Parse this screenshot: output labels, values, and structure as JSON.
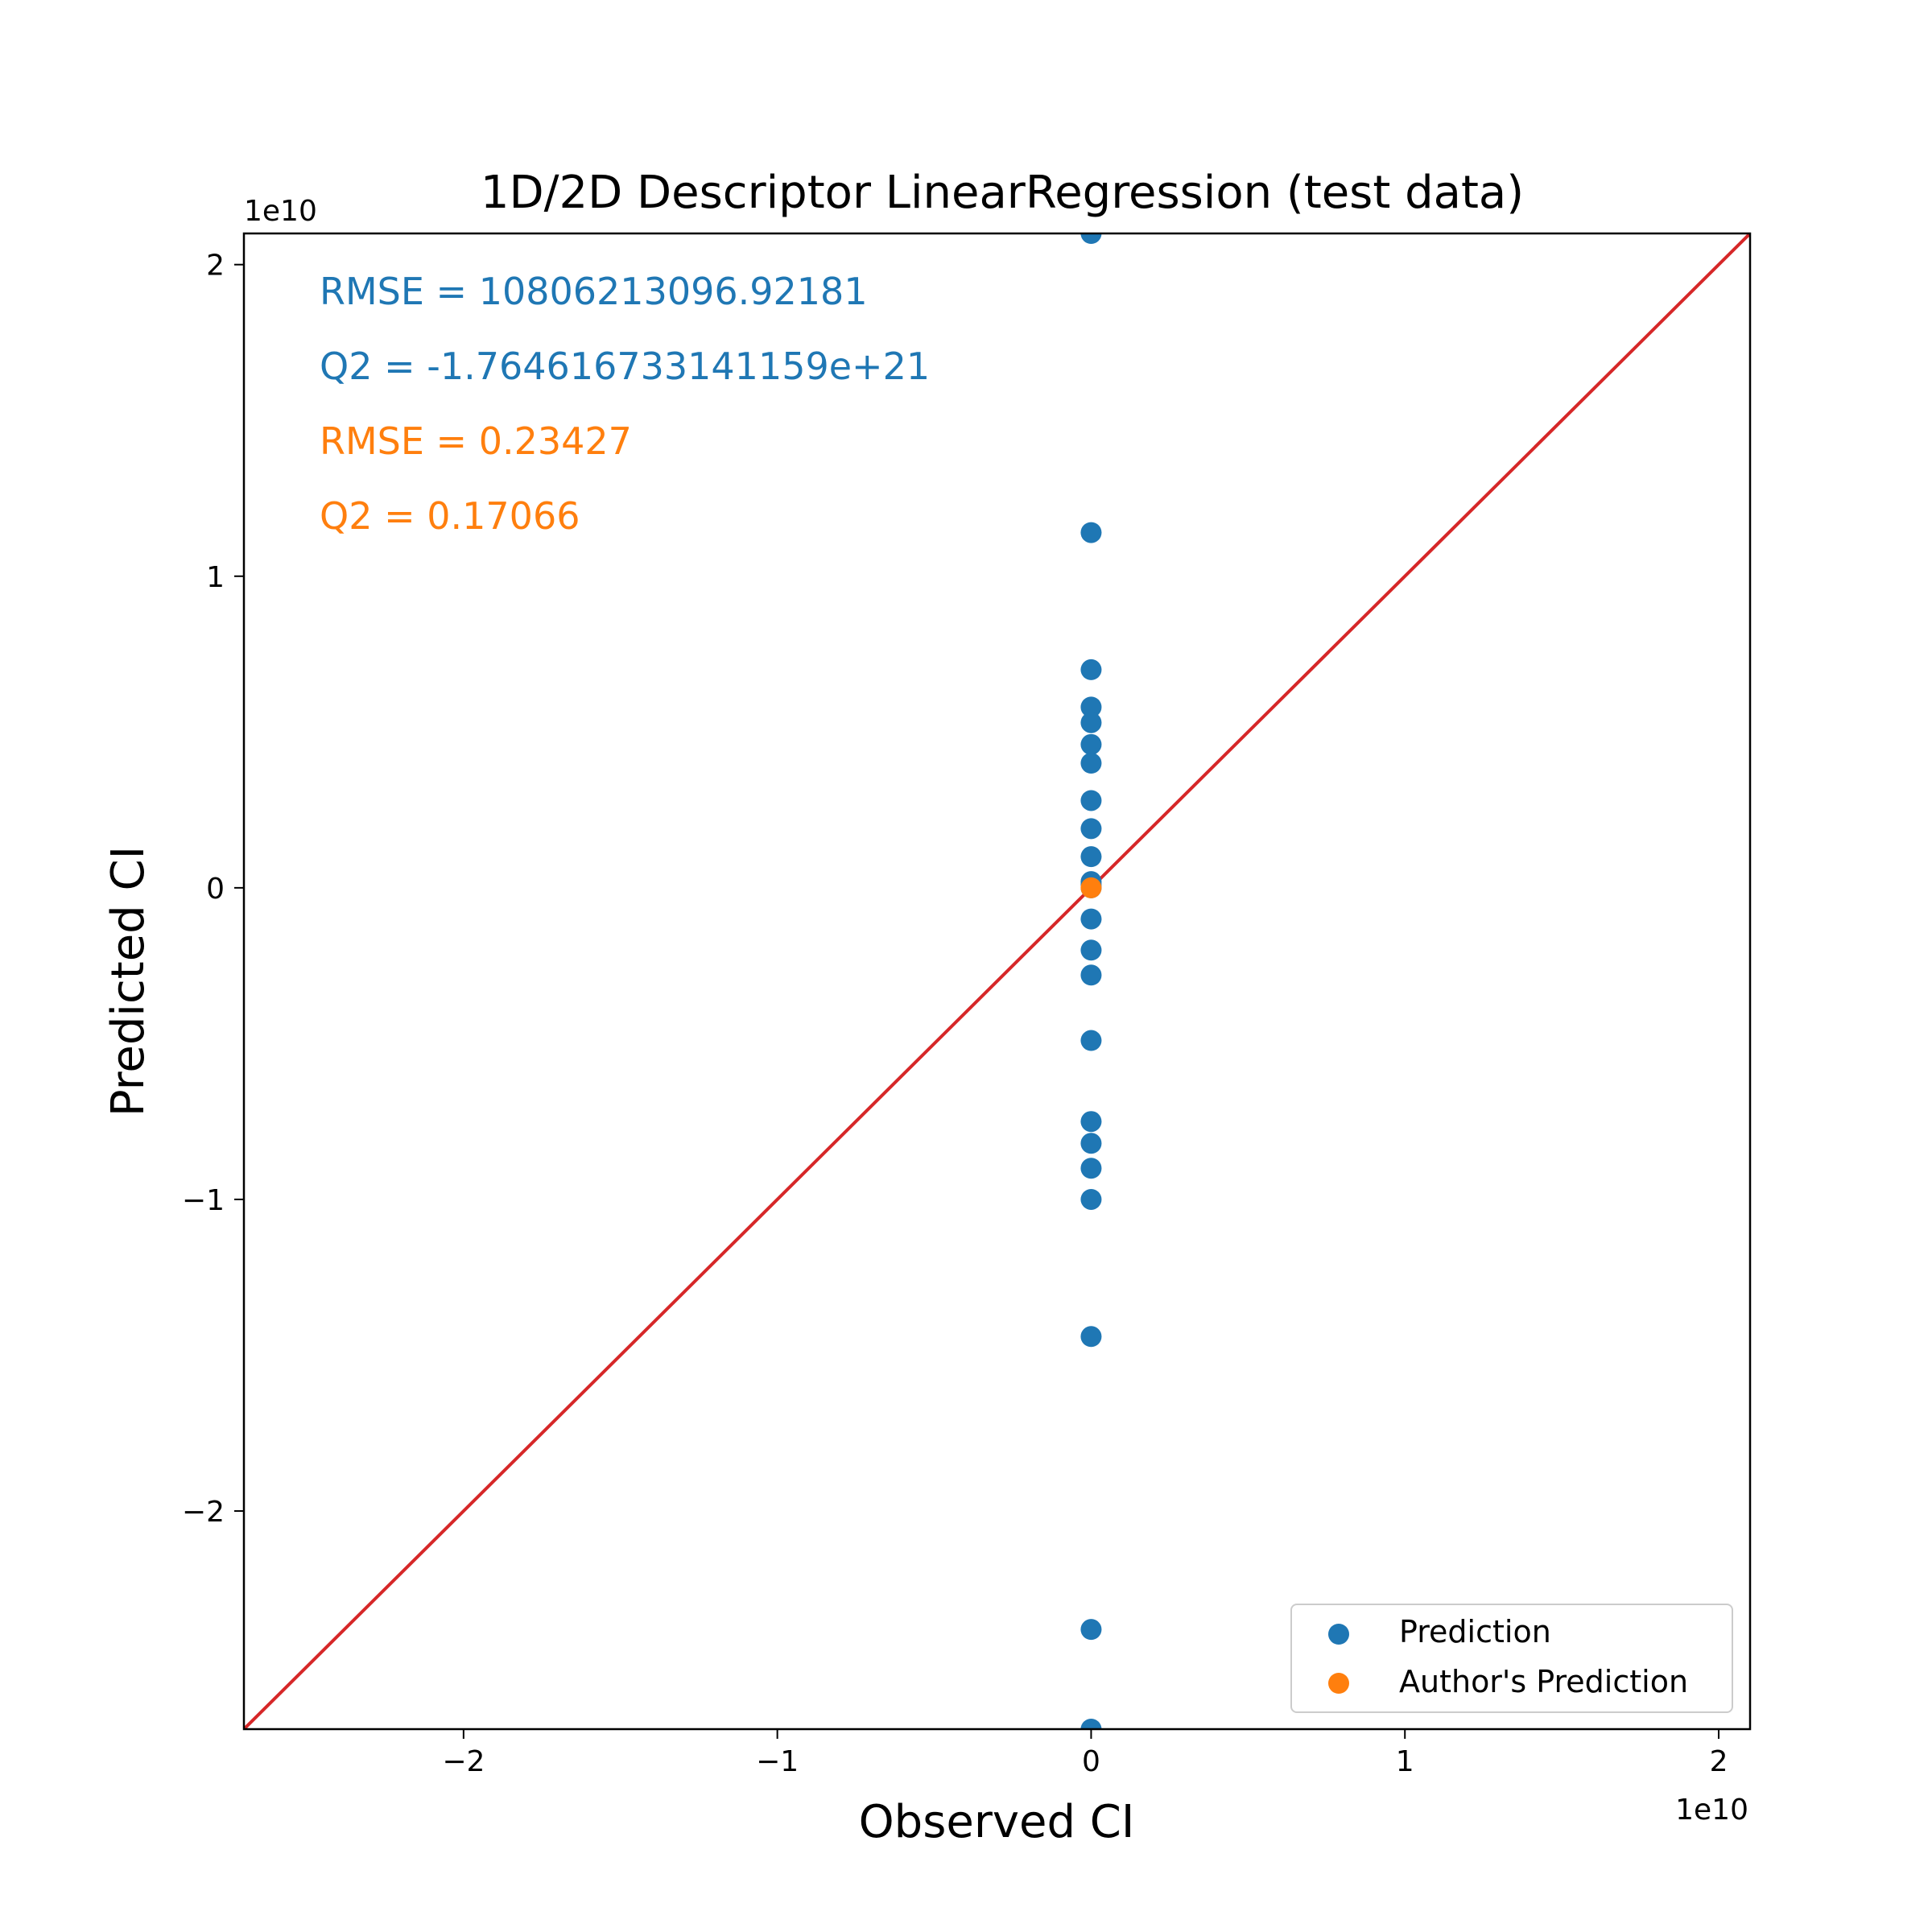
{
  "chart_data": {
    "type": "scatter",
    "title": "1D/2D Descriptor LinearRegression (test data)",
    "xlabel": "Observed CI",
    "ylabel": "Predicted CI",
    "x_offset_label": "1e10",
    "y_offset_label": "1e10",
    "xlim": [
      -27000000000.0,
      21000000000.0
    ],
    "ylim": [
      -27000000000.0,
      21000000000.0
    ],
    "xticks": [
      -20000000000.0,
      -10000000000.0,
      0,
      10000000000.0,
      20000000000.0
    ],
    "yticks": [
      -20000000000.0,
      -10000000000.0,
      0,
      10000000000.0,
      20000000000.0
    ],
    "xtick_labels": [
      "−2",
      "−1",
      "0",
      "1",
      "2"
    ],
    "ytick_labels": [
      "−2",
      "−1",
      "0",
      "1",
      "2"
    ],
    "grid": false,
    "legend_position": "lower-right",
    "identity_line": {
      "from": [
        -27000000000.0,
        -27000000000.0
      ],
      "to": [
        21000000000.0,
        21000000000.0
      ],
      "color": "#d62728"
    },
    "annotations": [
      {
        "text": "RMSE = 10806213096.92181",
        "color": "#1f77b4"
      },
      {
        "text": "Q2 = -1.764616733141159e+21",
        "color": "#1f77b4"
      },
      {
        "text": "RMSE = 0.23427",
        "color": "#ff7f0e"
      },
      {
        "text": "Q2 = 0.17066",
        "color": "#ff7f0e"
      }
    ],
    "series": [
      {
        "name": "Prediction",
        "color": "#1f77b4",
        "x": [
          0,
          0,
          0,
          0,
          0,
          0,
          0,
          0,
          0,
          0,
          0,
          0,
          0,
          0,
          0,
          0,
          0,
          0,
          0,
          0,
          0,
          0,
          0,
          0
        ],
        "y": [
          21000000000.0,
          11400000000.0,
          7000000000.0,
          5800000000.0,
          5300000000.0,
          4600000000.0,
          4000000000.0,
          2800000000.0,
          1900000000.0,
          1000000000.0,
          100000000.0,
          -1000000000.0,
          -2000000000.0,
          -2800000000.0,
          -4900000000.0,
          -7500000000.0,
          -8200000000.0,
          -9000000000.0,
          -10000000000.0,
          -14400000000.0,
          -23800000000.0,
          -27000000000.0,
          0,
          200000000.0
        ]
      },
      {
        "name": "Author's Prediction",
        "color": "#ff7f0e",
        "x": [
          0
        ],
        "y": [
          0
        ]
      }
    ]
  }
}
